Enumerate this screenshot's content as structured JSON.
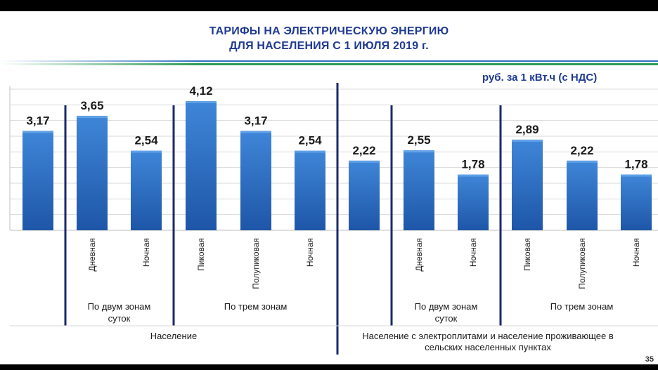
{
  "slide": {
    "title_line1": "ТАРИФЫ НА ЭЛЕКТРИЧЕСКУЮ ЭНЕРГИЮ",
    "title_line2": "ДЛЯ НАСЕЛЕНИЯ С 1 ИЮЛЯ 2019 г.",
    "units": "руб. за 1 кВт.ч (с НДС)",
    "page_number": "35"
  },
  "colors": {
    "title": "#1f3a93",
    "bar_top": "#3f86d8",
    "bar_bottom": "#1e56a8",
    "divider": "#1a2a6c",
    "accent_green": "#2e9b57",
    "accent_blue": "#2f6fc4"
  },
  "chart_data": {
    "type": "bar",
    "ylim": [
      0,
      4.5
    ],
    "grid": true,
    "values": [
      3.17,
      3.65,
      2.54,
      4.12,
      3.17,
      2.54,
      2.22,
      2.55,
      1.78,
      2.89,
      2.22,
      1.78
    ],
    "data_labels": [
      "3,17",
      "3,65",
      "2,54",
      "4,12",
      "3,17",
      "2,54",
      "2,22",
      "2,55",
      "1,78",
      "2,89",
      "2,22",
      "1,78"
    ],
    "categories": [
      "",
      "Дневная",
      "Ночная",
      "Пиковая",
      "Полупиковая",
      "Ночная",
      "",
      "Дневная",
      "Ночная",
      "Пиковая",
      "Полупиковая",
      "Ночная"
    ],
    "groups": [
      {
        "label_lines": [
          "По двум зонам",
          "суток"
        ],
        "start": 1,
        "end": 2
      },
      {
        "label_lines": [
          "По трем зонам"
        ],
        "start": 3,
        "end": 5
      },
      {
        "label_lines": [
          "По двум зонам",
          "суток"
        ],
        "start": 7,
        "end": 8
      },
      {
        "label_lines": [
          "По трем зонам"
        ],
        "start": 9,
        "end": 11
      }
    ],
    "sections": [
      {
        "label_lines": [
          "Население"
        ],
        "start": 0,
        "end": 5
      },
      {
        "label_lines": [
          "Население с электроплитами и население проживающее в",
          "сельских населенных пунктах"
        ],
        "start": 6,
        "end": 11
      }
    ]
  }
}
